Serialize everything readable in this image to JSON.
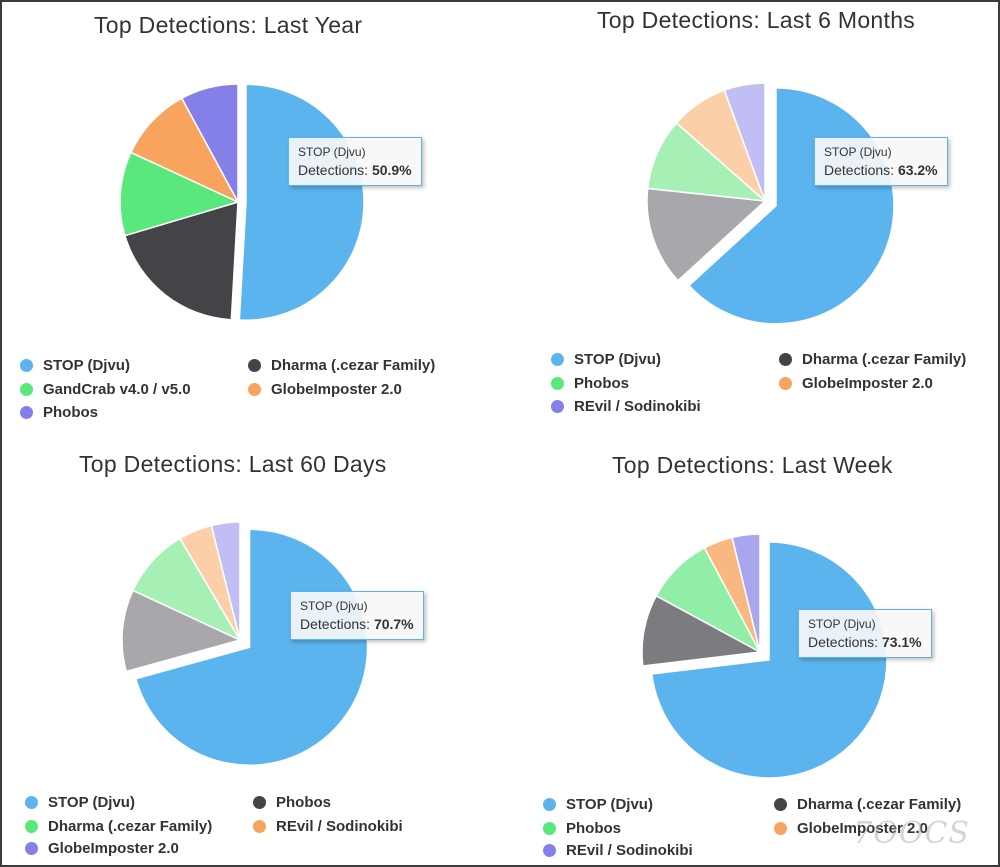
{
  "chart_data": [
    {
      "type": "pie",
      "title": "Top Detections: Last Year",
      "series": [
        {
          "name": "STOP (Djvu)",
          "value": 50.9,
          "color": "#5cb4ee"
        },
        {
          "name": "Dharma (.cezar Family)",
          "value": 19.5,
          "color": "#444448"
        },
        {
          "name": "GandCrab v4.0 / v5.0",
          "value": 11.5,
          "color": "#5ae87c"
        },
        {
          "name": "GlobeImposter 2.0",
          "value": 10.2,
          "color": "#f8a35e"
        },
        {
          "name": "Phobos",
          "value": 7.9,
          "color": "#8580e8"
        }
      ],
      "slice_order": [
        "STOP (Djvu)",
        "Dharma (.cezar Family)",
        "GandCrab v4.0 / v5.0",
        "GlobeImposter 2.0",
        "Phobos"
      ],
      "highlighted": "STOP (Djvu)",
      "tooltip": {
        "label": "STOP (Djvu)",
        "metric": "Detections:",
        "value": "50.9%"
      },
      "legend": [
        "STOP (Djvu)",
        "Dharma (.cezar Family)",
        "GandCrab v4.0 / v5.0",
        "GlobeImposter 2.0",
        "Phobos"
      ]
    },
    {
      "type": "pie",
      "title": "Top Detections: Last 6 Months",
      "series": [
        {
          "name": "STOP (Djvu)",
          "value": 63.2,
          "color": "#5cb4ee"
        },
        {
          "name": "Dharma (.cezar Family)",
          "value": 13.5,
          "color": "#a8a8ac"
        },
        {
          "name": "Phobos",
          "value": 9.8,
          "color": "#a6f0b6"
        },
        {
          "name": "GlobeImposter 2.0",
          "value": 7.9,
          "color": "#fbd0a8"
        },
        {
          "name": "REvil / Sodinokibi",
          "value": 5.6,
          "color": "#c0bef2"
        }
      ],
      "slice_order": [
        "STOP (Djvu)",
        "Dharma (.cezar Family)",
        "Phobos",
        "GlobeImposter 2.0",
        "REvil / Sodinokibi"
      ],
      "highlighted": "STOP (Djvu)",
      "legend_colors": {
        "STOP (Djvu)": "#5cb4ee",
        "Dharma (.cezar Family)": "#444448",
        "Phobos": "#5ae87c",
        "GlobeImposter 2.0": "#f8a35e",
        "REvil / Sodinokibi": "#8580e8"
      },
      "tooltip": {
        "label": "STOP (Djvu)",
        "metric": "Detections:",
        "value": "63.2%"
      },
      "legend": [
        "STOP (Djvu)",
        "Dharma (.cezar Family)",
        "Phobos",
        "GlobeImposter 2.0",
        "REvil / Sodinokibi"
      ]
    },
    {
      "type": "pie",
      "title": "Top Detections: Last 60 Days",
      "series": [
        {
          "name": "STOP (Djvu)",
          "value": 70.7,
          "color": "#5cb4ee"
        },
        {
          "name": "Phobos",
          "value": 11.2,
          "color": "#a8a8ac"
        },
        {
          "name": "Dharma (.cezar Family)",
          "value": 9.6,
          "color": "#a6f0b6"
        },
        {
          "name": "REvil / Sodinokibi",
          "value": 4.6,
          "color": "#fbd0a8"
        },
        {
          "name": "GlobeImposter 2.0",
          "value": 3.9,
          "color": "#c0bef2"
        }
      ],
      "slice_order": [
        "STOP (Djvu)",
        "Phobos",
        "Dharma (.cezar Family)",
        "REvil / Sodinokibi",
        "GlobeImposter 2.0"
      ],
      "highlighted": "STOP (Djvu)",
      "legend_colors": {
        "STOP (Djvu)": "#5cb4ee",
        "Phobos": "#444448",
        "Dharma (.cezar Family)": "#5ae87c",
        "REvil / Sodinokibi": "#f8a35e",
        "GlobeImposter 2.0": "#8580e8"
      },
      "tooltip": {
        "label": "STOP (Djvu)",
        "metric": "Detections:",
        "value": "70.7%"
      },
      "legend": [
        "STOP (Djvu)",
        "Phobos",
        "Dharma (.cezar Family)",
        "REvil / Sodinokibi",
        "GlobeImposter 2.0"
      ]
    },
    {
      "type": "pie",
      "title": "Top Detections: Last Week",
      "series": [
        {
          "name": "STOP (Djvu)",
          "value": 73.1,
          "color": "#5cb4ee"
        },
        {
          "name": "Dharma (.cezar Family)",
          "value": 9.8,
          "color": "#7c7c80"
        },
        {
          "name": "Phobos",
          "value": 9.3,
          "color": "#90eea6"
        },
        {
          "name": "GlobeImposter 2.0",
          "value": 4.0,
          "color": "#f8b880"
        },
        {
          "name": "REvil / Sodinokibi",
          "value": 3.8,
          "color": "#aaa6ee"
        }
      ],
      "slice_order": [
        "STOP (Djvu)",
        "Dharma (.cezar Family)",
        "Phobos",
        "GlobeImposter 2.0",
        "REvil / Sodinokibi"
      ],
      "highlighted": "STOP (Djvu)",
      "legend_colors": {
        "STOP (Djvu)": "#5cb4ee",
        "Dharma (.cezar Family)": "#444448",
        "Phobos": "#5ae87c",
        "GlobeImposter 2.0": "#f8a35e",
        "REvil / Sodinokibi": "#8580e8"
      },
      "tooltip": {
        "label": "STOP (Djvu)",
        "metric": "Detections:",
        "value": "73.1%"
      },
      "legend": [
        "STOP (Djvu)",
        "Dharma (.cezar Family)",
        "Phobos",
        "GlobeImposter 2.0",
        "REvil / Sodinokibi"
      ]
    }
  ],
  "watermark": "7OOCS"
}
